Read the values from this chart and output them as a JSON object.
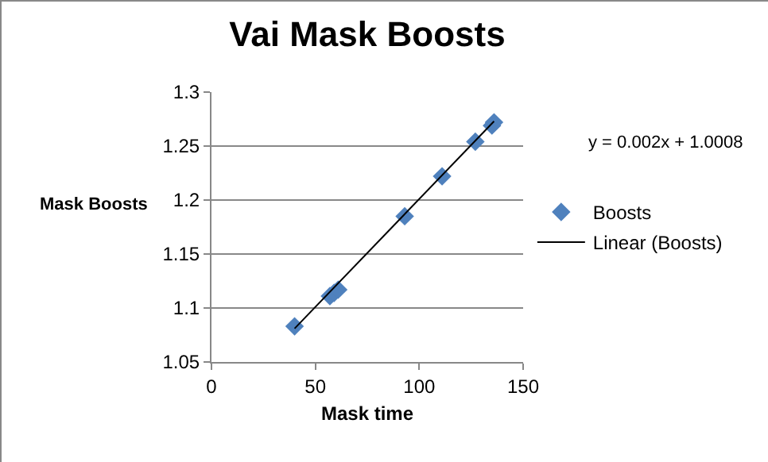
{
  "chart_data": {
    "type": "scatter",
    "title": "Vai Mask Boosts",
    "xlabel": "Mask time",
    "ylabel": "Mask Boosts",
    "annotations": [
      "y = 0.002x + 1.0008"
    ],
    "series": [
      {
        "name": "Boosts",
        "color": "#4f81bd",
        "marker": "diamond",
        "x": [
          40,
          57,
          59,
          61,
          93,
          111,
          127,
          135,
          136
        ],
        "values": [
          1.083,
          1.111,
          1.114,
          1.117,
          1.185,
          1.222,
          1.254,
          1.269,
          1.272
        ]
      },
      {
        "name": "Linear (Boosts)",
        "type": "line",
        "color": "#000000",
        "marker": "none",
        "line_style": "solid",
        "x": [
          40,
          136
        ],
        "values": [
          1.081,
          1.273
        ]
      }
    ],
    "xlim": [
      0,
      150
    ],
    "xticks": [
      0,
      50,
      100,
      150
    ],
    "ylim": [
      1.05,
      1.3
    ],
    "yticks": [
      1.05,
      1.1,
      1.15,
      1.2,
      1.25,
      1.3
    ],
    "grid": "y",
    "legend": "right"
  }
}
